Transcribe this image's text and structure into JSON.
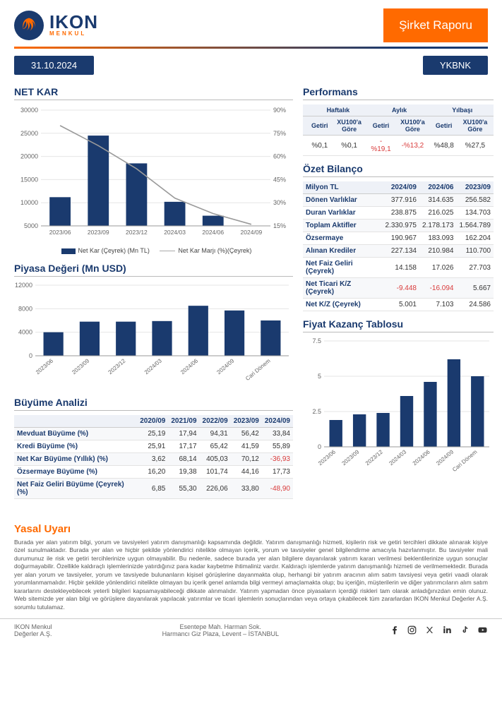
{
  "header": {
    "brand_main": "IKON",
    "brand_sub": "MENKUL",
    "banner": "Şirket Raporu",
    "date": "31.10.2024",
    "ticker": "YKBNK"
  },
  "netkar": {
    "title": "NET KAR",
    "type": "bar+line",
    "categories": [
      "2023/06",
      "2023/09",
      "2023/12",
      "2024/03",
      "2024/06",
      "2024/09"
    ],
    "bars": [
      11200,
      24500,
      18500,
      10200,
      7200,
      5001
    ],
    "y_left": {
      "min": 5000,
      "max": 30000,
      "step": 5000
    },
    "line_pct": [
      80,
      67,
      52,
      33,
      23,
      16
    ],
    "y_right": {
      "min": 15,
      "max": 90,
      "step": 15
    },
    "legend_bar": "Net Kar (Çeyrek) (Mn TL)",
    "legend_line": "Net Kar Marjı (%)(Çeyrek)",
    "colors": {
      "bar": "#1a3a6e",
      "line": "#9a9a9a",
      "grid": "#e6e6e6",
      "bg": "#ffffff"
    }
  },
  "piyasa": {
    "title": "Piyasa Değeri (Mn USD)",
    "type": "bar",
    "categories": [
      "2023/06",
      "2023/09",
      "2023/12",
      "2024/03",
      "2024/06",
      "2024/09",
      "Cari Dönem"
    ],
    "values": [
      4000,
      5800,
      5800,
      5900,
      8500,
      7700,
      6000
    ],
    "ylim": [
      0,
      12000
    ],
    "ystep": 4000,
    "bar_color": "#1a3a6e"
  },
  "buyume": {
    "title": "Büyüme Analizi",
    "cols": [
      "2020/09",
      "2021/09",
      "2022/09",
      "2023/09",
      "2024/09"
    ],
    "rows": [
      {
        "label": "Mevduat Büyüme (%)",
        "v": [
          "25,19",
          "17,94",
          "94,31",
          "56,42",
          "33,84"
        ]
      },
      {
        "label": "Kredi Büyüme (%)",
        "v": [
          "25,91",
          "17,17",
          "65,42",
          "41,59",
          "55,89"
        ]
      },
      {
        "label": "Net Kar Büyüme (Yıllık) (%)",
        "v": [
          "3,62",
          "68,14",
          "405,03",
          "70,12",
          "-36,93"
        ]
      },
      {
        "label": "Özsermaye Büyüme (%)",
        "v": [
          "16,20",
          "19,38",
          "101,74",
          "44,16",
          "17,73"
        ]
      },
      {
        "label": "Net Faiz Geliri Büyüme (Çeyrek) (%)",
        "v": [
          "6,85",
          "55,30",
          "226,06",
          "33,80",
          "-48,90"
        ]
      }
    ]
  },
  "performans": {
    "title": "Performans",
    "groups": [
      "Haftalık",
      "Aylık",
      "Yılbaşı"
    ],
    "sub": [
      "Getiri",
      "XU100'a Göre"
    ],
    "row": [
      "%0,1",
      "%0,1",
      "-%19,1",
      "-%13,2",
      "%48,8",
      "%27,5"
    ]
  },
  "ozet": {
    "title": "Özet Bilanço",
    "header_label": "Milyon TL",
    "cols": [
      "2024/09",
      "2024/06",
      "2023/09"
    ],
    "rows": [
      {
        "label": "Dönen Varlıklar",
        "v": [
          "377.916",
          "314.635",
          "256.582"
        ]
      },
      {
        "label": "Duran Varlıklar",
        "v": [
          "238.875",
          "216.025",
          "134.703"
        ]
      },
      {
        "label": "Toplam Aktifler",
        "v": [
          "2.330.975",
          "2.178.173",
          "1.564.789"
        ]
      },
      {
        "label": "Özsermaye",
        "v": [
          "190.967",
          "183.093",
          "162.204"
        ]
      },
      {
        "label": "Alınan Krediler",
        "v": [
          "227.134",
          "210.984",
          "110.700"
        ]
      },
      {
        "label": "Net Faiz Geliri (Çeyrek)",
        "v": [
          "14.158",
          "17.026",
          "27.703"
        ]
      },
      {
        "label": "Net Ticari K/Z (Çeyrek)",
        "v": [
          "-9.448",
          "-16.094",
          "5.667"
        ]
      },
      {
        "label": "Net K/Z (Çeyrek)",
        "v": [
          "5.001",
          "7.103",
          "24.586"
        ]
      }
    ]
  },
  "fiyat": {
    "title": "Fiyat Kazanç Tablosu",
    "type": "bar",
    "categories": [
      "2023/06",
      "2023/09",
      "2023/12",
      "2024/03",
      "2024/06",
      "2024/09",
      "Cari Dönem"
    ],
    "values": [
      1.9,
      2.3,
      2.4,
      3.6,
      4.6,
      6.2,
      5.0
    ],
    "ylim": [
      0,
      7.5
    ],
    "ystep": 2.5,
    "bar_color": "#1a3a6e"
  },
  "legal": {
    "title": "Yasal Uyarı",
    "text": "Burada yer alan yatırım bilgi, yorum ve tavsiyeleri yatırım danışmanlığı kapsamında değildir. Yatırım danışmanlığı hizmeti, kişilerin risk ve getiri tercihleri dikkate alınarak kişiye özel sunulmaktadır. Burada yer alan ve hiçbir şekilde yönlendirici nitelikte olmayan içerik, yorum ve tavsiyeler genel bilgilendirme amacıyla hazırlanmıştır. Bu tavsiyeler mali durumunuz ile risk ve getiri tercihlerinize uygun olmayabilir. Bu nedenle, sadece burada yer alan bilgilere dayanılarak yatırım kararı verilmesi beklentilerinize uygun sonuçlar doğurmayabilir. Özellikle kaldıraçlı işlemlerinizde yatırdığınız para kadar kaybetme ihtimaliniz vardır. Kaldıraçlı işlemlerde yatırım danışmanlığı hizmeti de verilmemektedir. Burada yer alan yorum ve tavsiyeler, yorum ve tavsiyede bulunanların kişisel görüşlerine dayanmakta olup, herhangi bir yatırım aracının alım satım tavsiyesi veya getiri vaadi olarak yorumlanmamalıdır. Hiçbir şekilde yönlendirici nitelikte olmayan bu içerik genel anlamda bilgi vermeyi amaçlamakta olup; bu içeriğin, müşterilerin ve diğer yatırımcıların alım satım kararlarını destekleyebilecek yeterli bilgileri kapsamayabileceği dikkate alınmalıdır. Yatırım yapmadan önce piyasaların içerdiği riskleri tam olarak anladığınızdan emin olunuz. Web sitemizde yer alan bilgi ve görüşlere dayanılarak yapılacak yatırımlar ve ticari işlemlerin sonuçlarından veya ortaya çıkabilecek tüm zararlardan IKON Menkul Değerler A.Ş. sorumlu tutulamaz."
  },
  "footer": {
    "company1": "IKON Menkul",
    "company2": "Değerler A.Ş.",
    "addr1": "Esentepe Mah. Harman Sok.",
    "addr2": "Harmancı Giz Plaza, Levent – İSTANBUL",
    "social": [
      "facebook",
      "instagram",
      "x",
      "linkedin",
      "tiktok",
      "youtube"
    ]
  }
}
